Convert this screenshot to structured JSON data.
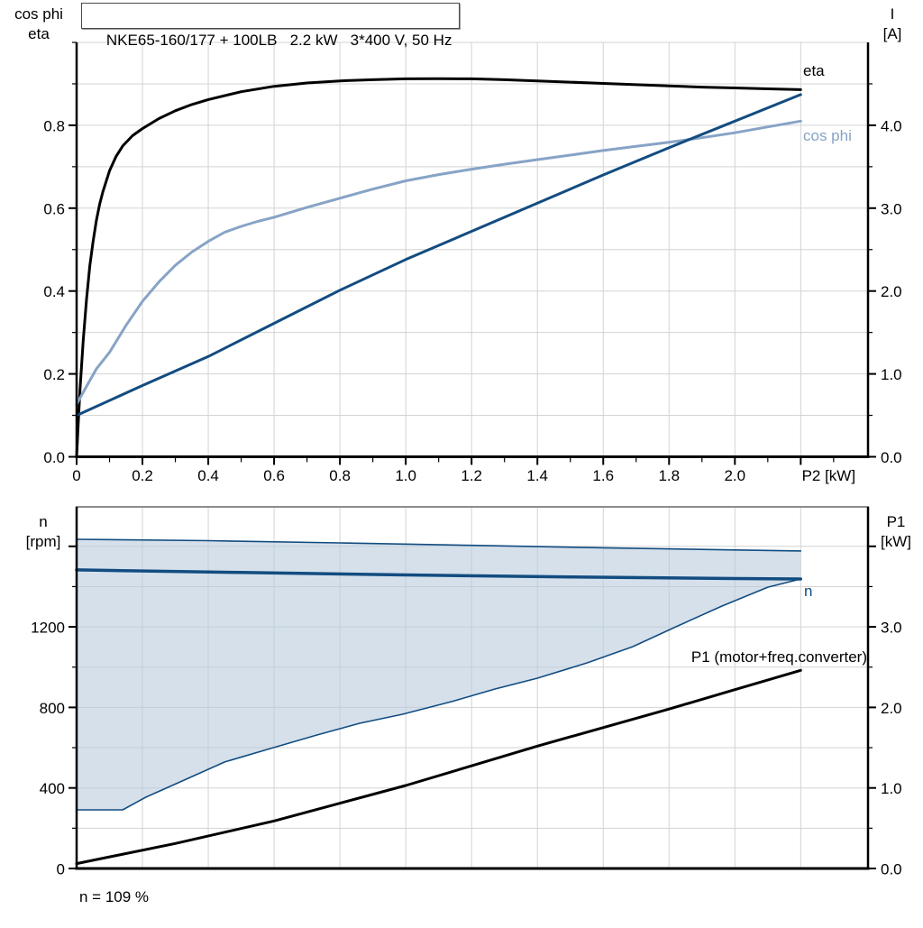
{
  "title": {
    "text": "NKE65-160/177 + 100LB   2.2 kW   3*400 V, 50 Hz"
  },
  "headers": {
    "top_left_1": "cos phi",
    "top_left_2": "eta",
    "top_right_1": "I",
    "top_right_2": "[A]",
    "bottom_left_1": "n",
    "bottom_left_2": "[rpm]",
    "bottom_right_1": "P1",
    "bottom_right_2": "[kW]"
  },
  "note": "n = 109 %",
  "colors": {
    "black": "#000000",
    "dark_blue": "#124c80",
    "light_blue": "#87a3c6",
    "band_fill": "#b9cbdd",
    "grid": "#d3d3d3",
    "frame_gray": "#8c8c8c"
  },
  "chart_data": [
    {
      "type": "line",
      "name": "efficiency-cosphi-current-vs-p2",
      "xlabel": "P2 [kW]",
      "x_range": [
        0,
        2.405
      ],
      "y_left_range": [
        0,
        1.0
      ],
      "y_right_range": [
        0,
        5.0
      ],
      "y_left_label": "cos phi / eta",
      "y_right_label": "I [A]",
      "grid": true,
      "grid_x": [
        0.2,
        0.4,
        0.6,
        0.8,
        1.0,
        1.2,
        1.4,
        1.6,
        1.8,
        2.0,
        2.2
      ],
      "grid_y_left": [
        0.1,
        0.2,
        0.3,
        0.4,
        0.5,
        0.6,
        0.7,
        0.8,
        0.9,
        1.0
      ],
      "x_major": [
        0,
        0.2,
        0.4,
        0.6,
        0.8,
        1.0,
        1.2,
        1.4,
        1.6,
        1.8,
        2.0,
        2.2
      ],
      "x_major_labels": [
        "0",
        "0.2",
        "0.4",
        "0.6",
        "0.8",
        "1.0",
        "1.2",
        "1.4",
        "1.6",
        "1.8",
        "2.0",
        "P2 [kW]"
      ],
      "x_label_dx": [
        0,
        0,
        0,
        0,
        0,
        0,
        0,
        0,
        0,
        0,
        0,
        31
      ],
      "x_minor": [
        0.1,
        0.3,
        0.5,
        0.7,
        0.9,
        1.1,
        1.3,
        1.5,
        1.7,
        1.9,
        2.1,
        2.3
      ],
      "y_left_major": [
        0,
        0.2,
        0.4,
        0.6,
        0.8
      ],
      "y_left_major_labels": [
        "0.0",
        "0.2",
        "0.4",
        "0.6",
        "0.8"
      ],
      "y_left_minor": [
        0.1,
        0.3,
        0.5,
        0.7,
        0.9,
        1.0
      ],
      "y_right_major": [
        0,
        1,
        2,
        3,
        4
      ],
      "y_right_major_labels": [
        "0.0",
        "1.0",
        "2.0",
        "3.0",
        "4.0"
      ],
      "y_right_minor": [
        0.5,
        1.5,
        2.5,
        3.5,
        4.5
      ],
      "series": [
        {
          "name": "eta",
          "axis": "left",
          "color": "black",
          "width": 3,
          "points": [
            [
              0,
              0
            ],
            [
              0.005,
              0.08
            ],
            [
              0.01,
              0.16
            ],
            [
              0.02,
              0.28
            ],
            [
              0.03,
              0.38
            ],
            [
              0.04,
              0.46
            ],
            [
              0.05,
              0.52
            ],
            [
              0.06,
              0.57
            ],
            [
              0.07,
              0.61
            ],
            [
              0.08,
              0.64
            ],
            [
              0.1,
              0.69
            ],
            [
              0.12,
              0.725
            ],
            [
              0.14,
              0.75
            ],
            [
              0.17,
              0.775
            ],
            [
              0.2,
              0.792
            ],
            [
              0.25,
              0.816
            ],
            [
              0.3,
              0.835
            ],
            [
              0.35,
              0.85
            ],
            [
              0.4,
              0.862
            ],
            [
              0.5,
              0.881
            ],
            [
              0.6,
              0.894
            ],
            [
              0.7,
              0.902
            ],
            [
              0.8,
              0.907
            ],
            [
              0.9,
              0.91
            ],
            [
              1.0,
              0.912
            ],
            [
              1.1,
              0.9125
            ],
            [
              1.2,
              0.912
            ],
            [
              1.3,
              0.91
            ],
            [
              1.4,
              0.907
            ],
            [
              1.5,
              0.904
            ],
            [
              1.6,
              0.901
            ],
            [
              1.7,
              0.898
            ],
            [
              1.8,
              0.895
            ],
            [
              1.9,
              0.892
            ],
            [
              2.0,
              0.89
            ],
            [
              2.1,
              0.888
            ],
            [
              2.2,
              0.886
            ]
          ]
        },
        {
          "name": "cos-phi",
          "axis": "left",
          "color": "light_blue",
          "width": 3,
          "points": [
            [
              0,
              0.127
            ],
            [
              0.03,
              0.17
            ],
            [
              0.06,
              0.212
            ],
            [
              0.1,
              0.252
            ],
            [
              0.15,
              0.317
            ],
            [
              0.2,
              0.375
            ],
            [
              0.25,
              0.422
            ],
            [
              0.3,
              0.462
            ],
            [
              0.35,
              0.494
            ],
            [
              0.4,
              0.52
            ],
            [
              0.45,
              0.542
            ],
            [
              0.5,
              0.556
            ],
            [
              0.55,
              0.568
            ],
            [
              0.6,
              0.578
            ],
            [
              0.7,
              0.602
            ],
            [
              0.8,
              0.624
            ],
            [
              0.9,
              0.646
            ],
            [
              1.0,
              0.666
            ],
            [
              1.1,
              0.681
            ],
            [
              1.2,
              0.694
            ],
            [
              1.3,
              0.706
            ],
            [
              1.4,
              0.717
            ],
            [
              1.5,
              0.728
            ],
            [
              1.6,
              0.739
            ],
            [
              1.7,
              0.749
            ],
            [
              1.8,
              0.759
            ],
            [
              1.9,
              0.77
            ],
            [
              2.0,
              0.782
            ],
            [
              2.1,
              0.796
            ],
            [
              2.2,
              0.81
            ]
          ]
        },
        {
          "name": "current-I",
          "axis": "right",
          "color": "dark_blue",
          "width": 3,
          "points": [
            [
              0,
              0.5
            ],
            [
              0.2,
              0.86
            ],
            [
              0.4,
              1.21
            ],
            [
              0.6,
              1.61
            ],
            [
              0.8,
              2.01
            ],
            [
              1.0,
              2.38
            ],
            [
              1.2,
              2.72
            ],
            [
              1.4,
              3.06
            ],
            [
              1.6,
              3.4
            ],
            [
              1.8,
              3.73
            ],
            [
              2.0,
              4.05
            ],
            [
              2.2,
              4.37
            ]
          ]
        }
      ],
      "annotations": [
        {
          "text": "eta",
          "x": 891,
          "y": 84,
          "color": "black",
          "anchor": "start"
        },
        {
          "text": "cos phi",
          "x": 891,
          "y": 156,
          "color": "light_blue",
          "anchor": "start"
        }
      ]
    },
    {
      "type": "area",
      "name": "speed-and-p1-vs-p2",
      "xlabel": "",
      "x_range": [
        0,
        2.405
      ],
      "y_left_range": [
        0,
        1800
      ],
      "y_right_range": [
        0,
        4.5
      ],
      "y_left_label": "n [rpm]",
      "y_right_label": "P1 [kW]",
      "grid": true,
      "grid_x": [
        0.2,
        0.4,
        0.6,
        0.8,
        1.0,
        1.2,
        1.4,
        1.6,
        1.8,
        2.0,
        2.2
      ],
      "grid_y_left": [
        200,
        400,
        600,
        800,
        1000,
        1200,
        1400,
        1600
      ],
      "x_major": [],
      "x_major_labels": [],
      "x_label_dx": [],
      "x_minor": [],
      "y_left_major": [
        0,
        400,
        800,
        1200,
        1600
      ],
      "y_left_major_labels": [
        "0",
        "400",
        "800",
        "1200",
        ""
      ],
      "y_left_minor": [
        200,
        600,
        1000,
        1400
      ],
      "y_right_major": [
        0,
        1,
        2,
        3,
        4
      ],
      "y_right_major_labels": [
        "0.0",
        "1.0",
        "2.0",
        "3.0",
        ""
      ],
      "y_right_minor": [
        0.5,
        1.5,
        2.5,
        3.5
      ],
      "band": {
        "upper": "n-max",
        "lower": "n-min",
        "name": "speed-control-range"
      },
      "series": [
        {
          "name": "n-max",
          "axis": "left",
          "color": "dark_blue",
          "width": 1.6,
          "points": [
            [
              0,
              1635
            ],
            [
              0.4,
              1628
            ],
            [
              0.8,
              1617
            ],
            [
              1.2,
              1605
            ],
            [
              1.6,
              1593
            ],
            [
              2.0,
              1582
            ],
            [
              2.2,
              1577
            ]
          ]
        },
        {
          "name": "n-min",
          "axis": "left",
          "color": "dark_blue",
          "width": 1.6,
          "points": [
            [
              0,
              291
            ],
            [
              0.14,
              291
            ],
            [
              0.21,
              354
            ],
            [
              0.32,
              434
            ],
            [
              0.45,
              529
            ],
            [
              0.59,
              596
            ],
            [
              0.73,
              663
            ],
            [
              0.86,
              721
            ],
            [
              0.99,
              766
            ],
            [
              1.14,
              829
            ],
            [
              1.27,
              891
            ],
            [
              1.4,
              945
            ],
            [
              1.55,
              1021
            ],
            [
              1.69,
              1102
            ],
            [
              1.82,
              1200
            ],
            [
              1.96,
              1303
            ],
            [
              2.1,
              1397
            ],
            [
              2.2,
              1438
            ]
          ]
        },
        {
          "name": "n",
          "axis": "left",
          "color": "dark_blue",
          "width": 3.5,
          "points": [
            [
              0,
              1483
            ],
            [
              0.5,
              1470
            ],
            [
              1.0,
              1458
            ],
            [
              1.5,
              1448
            ],
            [
              2.0,
              1440
            ],
            [
              2.2,
              1438
            ]
          ]
        },
        {
          "name": "p1-motor-freq-converter",
          "axis": "right",
          "color": "black",
          "width": 3,
          "points": [
            [
              0,
              0.06
            ],
            [
              0.3,
              0.31
            ],
            [
              0.6,
              0.59
            ],
            [
              1.0,
              1.03
            ],
            [
              1.4,
              1.52
            ],
            [
              1.8,
              1.98
            ],
            [
              2.0,
              2.22
            ],
            [
              2.2,
              2.46
            ]
          ]
        }
      ],
      "annotations": [
        {
          "text": "n",
          "x": 892,
          "y": 661,
          "color": "dark_blue",
          "anchor": "start"
        },
        {
          "text": "P1 (motor+freq.converter)",
          "x": 962,
          "y": 734,
          "color": "black",
          "anchor": "end"
        }
      ]
    }
  ]
}
